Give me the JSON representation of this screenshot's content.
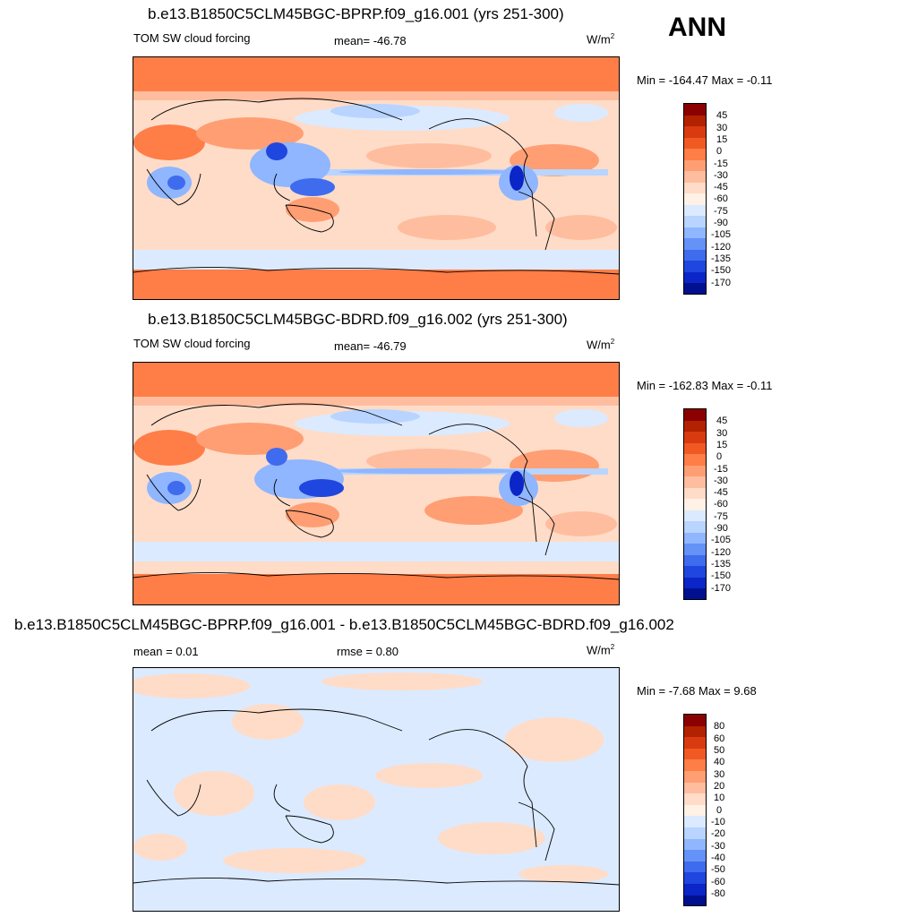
{
  "season": "ANN",
  "units": "W/m",
  "units_sup": "2",
  "panels": [
    {
      "title": "b.e13.B1850C5CLM45BGC-BPRP.f09_g16.001 (yrs 251-300)",
      "variable": "TOM SW cloud forcing",
      "mean": "mean= -46.78",
      "minmax": "Min = -164.47 Max =  -0.11",
      "colorbar": {
        "labels": [
          "45",
          "30",
          "15",
          "0",
          "-15",
          "-30",
          "-45",
          "-60",
          "-75",
          "-90",
          "-105",
          "-120",
          "-135",
          "-150",
          "-170"
        ],
        "colors": [
          "#8b0000",
          "#b22200",
          "#d93a10",
          "#f05a22",
          "#ff7d47",
          "#ff9e73",
          "#ffbd9f",
          "#ffdcc8",
          "#fff1e6",
          "#dbeaff",
          "#b8d4ff",
          "#8fb6ff",
          "#6492f7",
          "#3f6bee",
          "#1f46df",
          "#0b25c8",
          "#00108f"
        ]
      }
    },
    {
      "title": "b.e13.B1850C5CLM45BGC-BDRD.f09_g16.002 (yrs 251-300)",
      "variable": "TOM SW cloud forcing",
      "mean": "mean= -46.79",
      "minmax": "Min = -162.83 Max =  -0.11",
      "colorbar": {
        "labels": [
          "45",
          "30",
          "15",
          "0",
          "-15",
          "-30",
          "-45",
          "-60",
          "-75",
          "-90",
          "-105",
          "-120",
          "-135",
          "-150",
          "-170"
        ],
        "colors": [
          "#8b0000",
          "#b22200",
          "#d93a10",
          "#f05a22",
          "#ff7d47",
          "#ff9e73",
          "#ffbd9f",
          "#ffdcc8",
          "#fff1e6",
          "#dbeaff",
          "#b8d4ff",
          "#8fb6ff",
          "#6492f7",
          "#3f6bee",
          "#1f46df",
          "#0b25c8",
          "#00108f"
        ]
      }
    },
    {
      "title": "b.e13.B1850C5CLM45BGC-BPRP.f09_g16.001 - b.e13.B1850C5CLM45BGC-BDRD.f09_g16.002",
      "mean": "mean =   0.01",
      "rmse": "rmse =   0.80",
      "minmax": "Min =  -7.68 Max =   9.68",
      "colorbar": {
        "labels": [
          "80",
          "60",
          "50",
          "40",
          "30",
          "20",
          "10",
          "0",
          "-10",
          "-20",
          "-30",
          "-40",
          "-50",
          "-60",
          "-80"
        ],
        "colors": [
          "#8b0000",
          "#b22200",
          "#d93a10",
          "#f05a22",
          "#ff7d47",
          "#ff9e73",
          "#ffbd9f",
          "#ffdcc8",
          "#fff1e6",
          "#dbeaff",
          "#b8d4ff",
          "#8fb6ff",
          "#6492f7",
          "#3f6bee",
          "#1f46df",
          "#0b25c8",
          "#00108f"
        ]
      }
    }
  ],
  "colors": {
    "strong_red": "#ff7d47",
    "light_salmon": "#ffdcc8",
    "light_blue": "#dbeaff",
    "blue": "#8fb6ff",
    "dark_blue": "#1f46df"
  }
}
